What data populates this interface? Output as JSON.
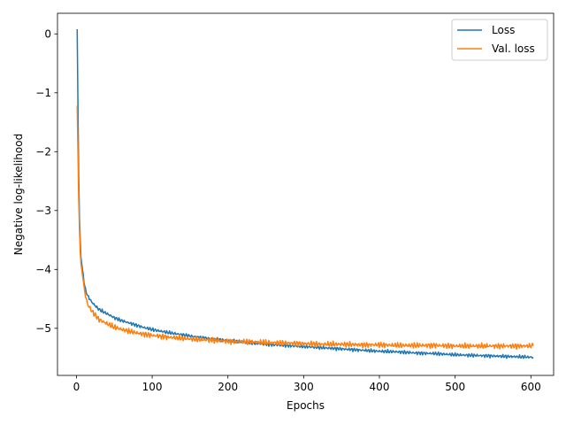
{
  "chart_data": {
    "type": "line",
    "title": "",
    "xlabel": "Epochs",
    "ylabel": "Negative log-likelihood",
    "xlim": [
      -25,
      630
    ],
    "ylim": [
      -5.8,
      0.35
    ],
    "xticks": [
      0,
      100,
      200,
      300,
      400,
      500,
      600
    ],
    "yticks": [
      0,
      -1,
      -2,
      -3,
      -4,
      -5
    ],
    "legend": "top-right",
    "grid": false,
    "series": [
      {
        "name": "Loss",
        "color": "#1f77b4",
        "x": [
          1,
          2,
          3,
          4,
          5,
          6,
          8,
          10,
          12,
          15,
          20,
          25,
          30,
          40,
          50,
          60,
          70,
          80,
          90,
          100,
          120,
          140,
          160,
          180,
          200,
          225,
          250,
          275,
          300,
          325,
          350,
          375,
          400,
          425,
          450,
          475,
          500,
          525,
          550,
          575,
          600,
          603
        ],
        "y": [
          0.08,
          -1.2,
          -2.4,
          -3.1,
          -3.5,
          -3.8,
          -4.0,
          -4.2,
          -4.35,
          -4.45,
          -4.55,
          -4.62,
          -4.68,
          -4.75,
          -4.82,
          -4.87,
          -4.91,
          -4.95,
          -4.99,
          -5.02,
          -5.07,
          -5.11,
          -5.15,
          -5.18,
          -5.21,
          -5.24,
          -5.27,
          -5.29,
          -5.31,
          -5.33,
          -5.35,
          -5.37,
          -5.39,
          -5.4,
          -5.42,
          -5.43,
          -5.45,
          -5.46,
          -5.47,
          -5.48,
          -5.49,
          -5.49
        ]
      },
      {
        "name": "Val. loss",
        "color": "#ff7f0e",
        "x": [
          1,
          2,
          3,
          4,
          5,
          6,
          8,
          10,
          12,
          15,
          20,
          25,
          30,
          40,
          50,
          60,
          70,
          80,
          90,
          100,
          120,
          140,
          160,
          180,
          200,
          225,
          250,
          275,
          300,
          325,
          350,
          375,
          400,
          425,
          450,
          475,
          500,
          525,
          550,
          575,
          600,
          603
        ],
        "y": [
          -1.22,
          -2.0,
          -2.8,
          -3.3,
          -3.7,
          -3.9,
          -4.1,
          -4.3,
          -4.45,
          -4.6,
          -4.7,
          -4.78,
          -4.85,
          -4.92,
          -4.98,
          -5.02,
          -5.05,
          -5.08,
          -5.1,
          -5.12,
          -5.15,
          -5.17,
          -5.19,
          -5.2,
          -5.22,
          -5.23,
          -5.24,
          -5.25,
          -5.26,
          -5.27,
          -5.27,
          -5.28,
          -5.28,
          -5.29,
          -5.29,
          -5.29,
          -5.3,
          -5.3,
          -5.3,
          -5.3,
          -5.3,
          -5.3
        ]
      }
    ]
  }
}
